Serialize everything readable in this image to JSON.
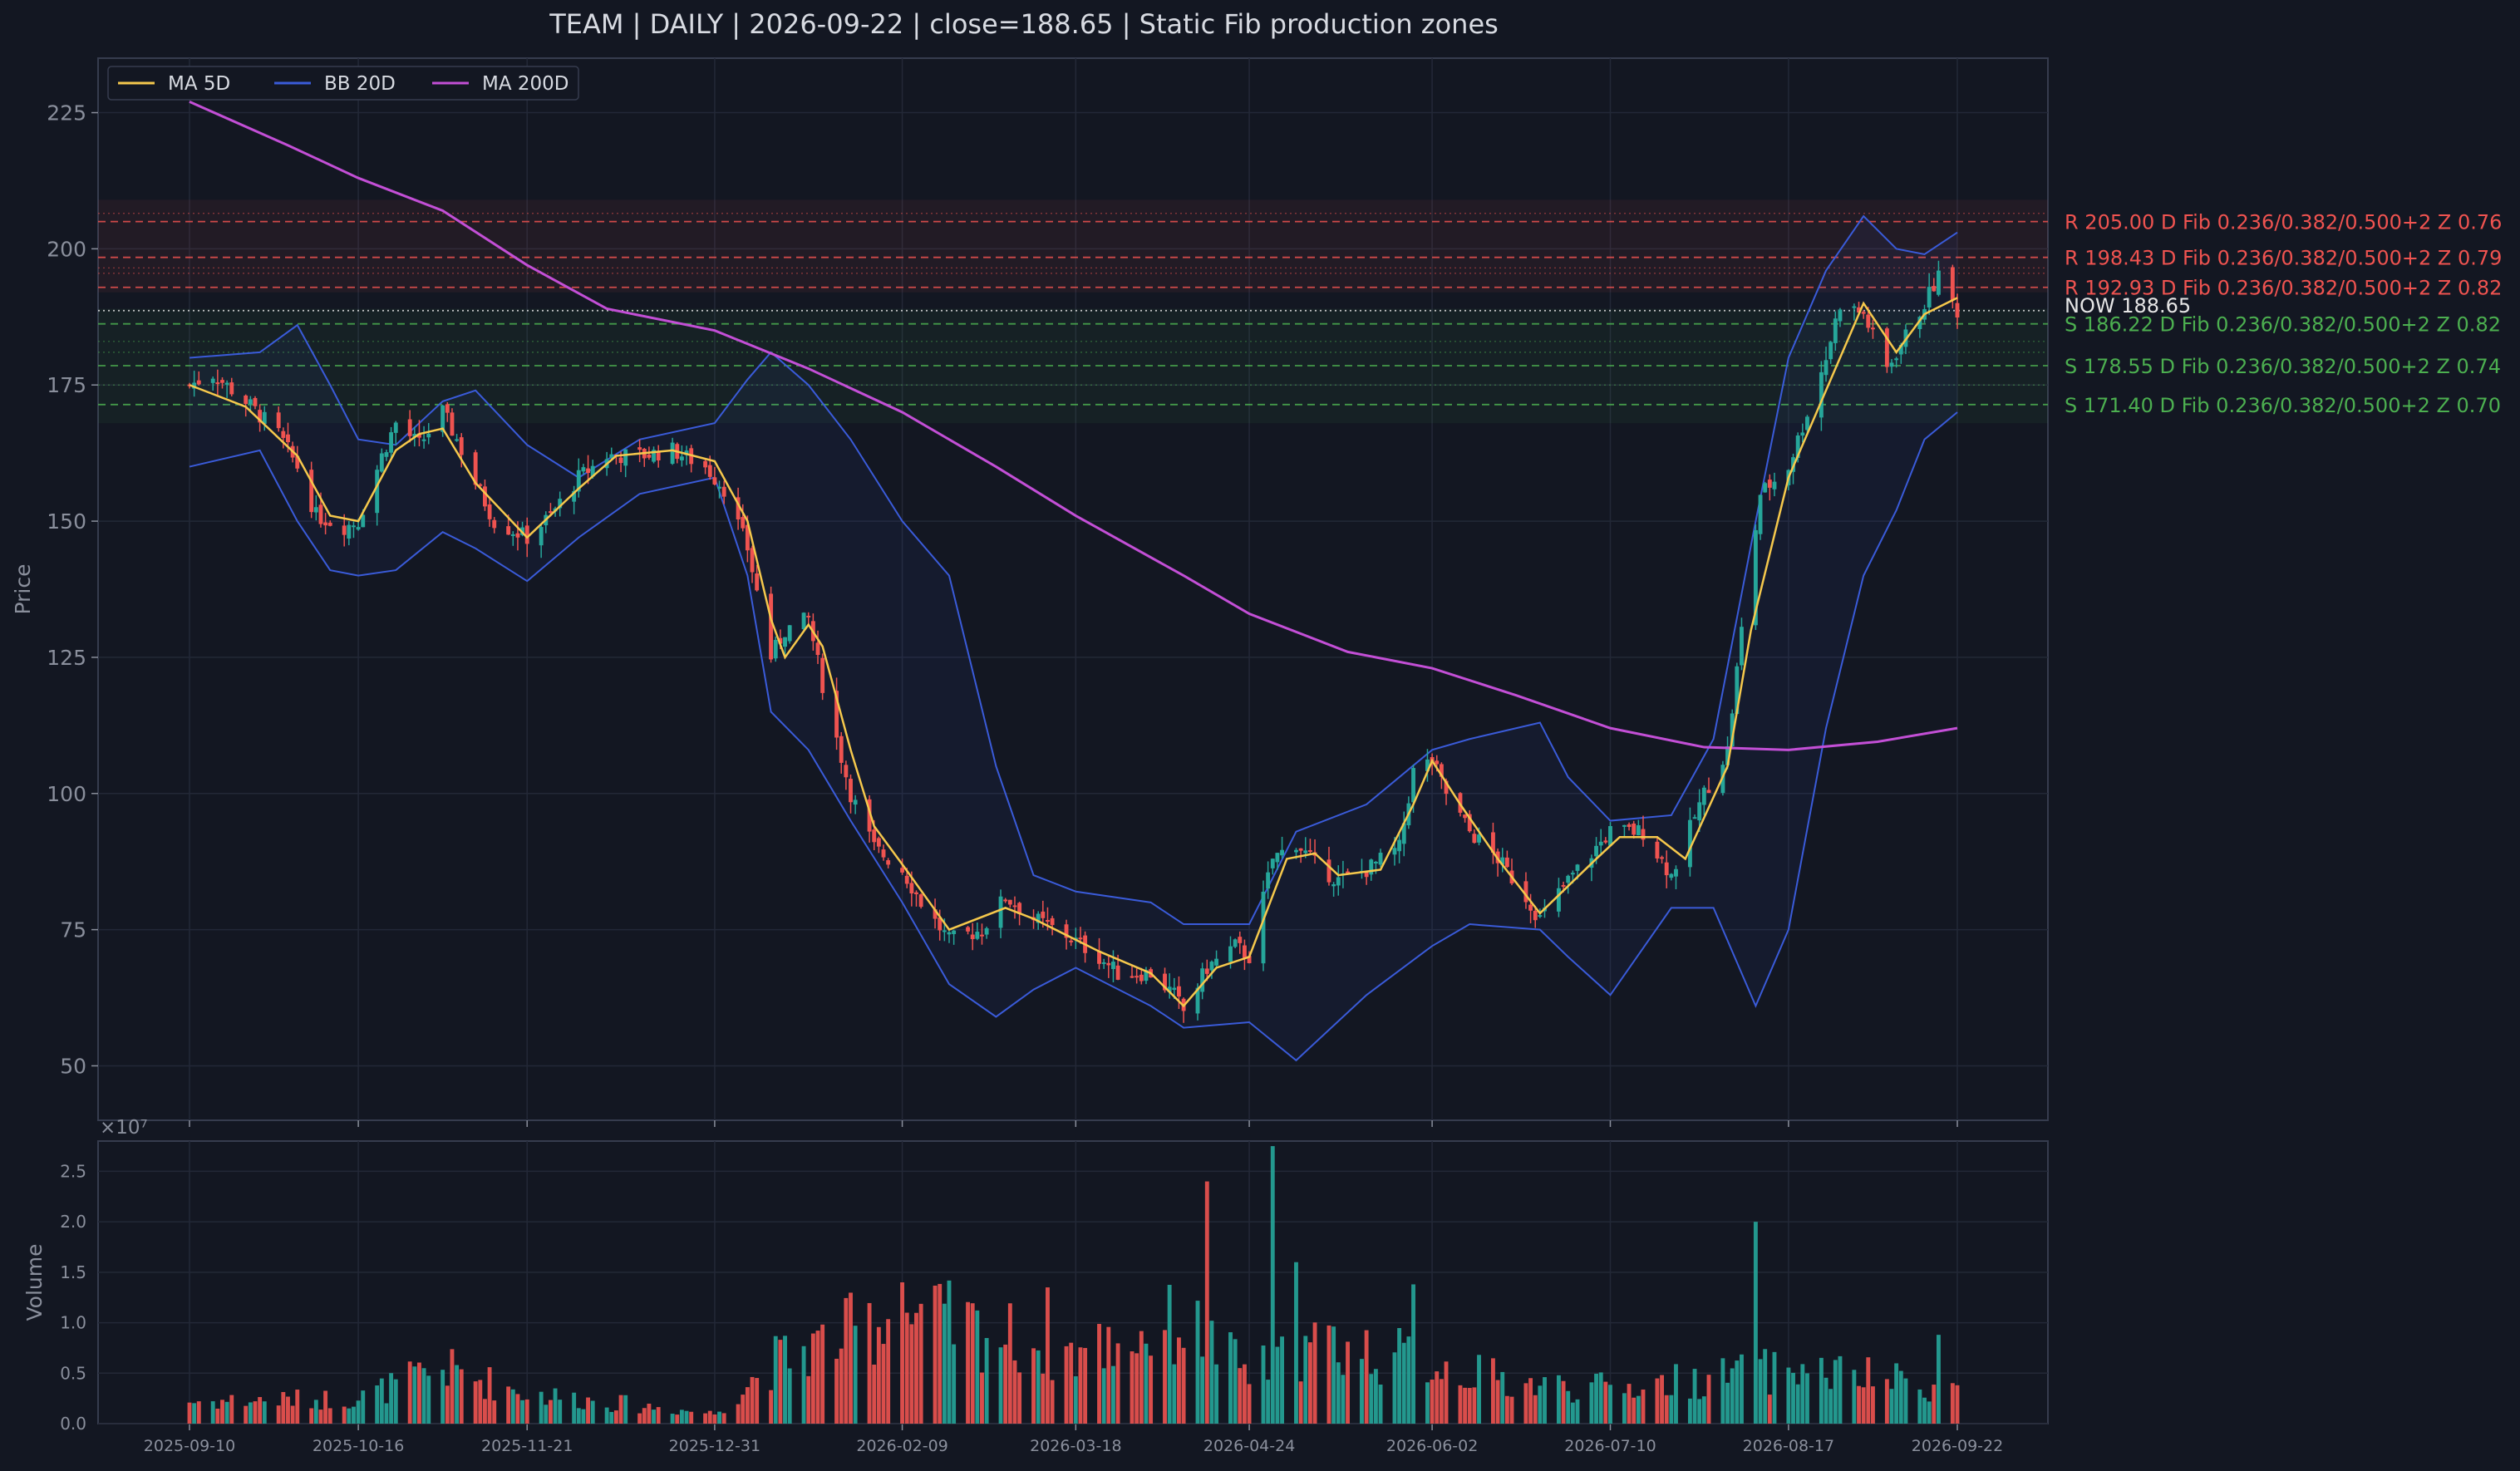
{
  "title": "TEAM  |  DAILY  |  2026-09-22  |  close=188.65  |  Static Fib production zones",
  "colors": {
    "background": "#131722",
    "panel": "#131722",
    "grid": "#232837",
    "border": "#363c4e",
    "text": "#d8dbe2",
    "muted": "#8a8f9c",
    "up": "#26a69a",
    "down": "#ef5350",
    "ma5": "#f5c84c",
    "bb": "#3a5bd9",
    "ma200": "#c34fd6",
    "resistance": "#ef5350",
    "support": "#4caf50",
    "now": "#e6e6e6"
  },
  "chart_data": {
    "type": "candlestick",
    "price_panel": {
      "ylabel": "Price",
      "ylim": [
        40,
        235
      ],
      "yticks": [
        50,
        75,
        100,
        125,
        150,
        175,
        200,
        225
      ],
      "grid": true,
      "legend": {
        "placement": "top-left",
        "entries": [
          {
            "label": "MA 5D",
            "color": "#f5c84c"
          },
          {
            "label": "BB 20D",
            "color": "#3a5bd9"
          },
          {
            "label": "MA 200D",
            "color": "#c34fd6"
          }
        ]
      }
    },
    "volume_panel": {
      "ylabel": "Volume",
      "scale_label": "×10⁷",
      "ylim": [
        0,
        2.8
      ],
      "yticks": [
        "0.0",
        "0.5",
        "1.0",
        "1.5",
        "2.0",
        "2.5"
      ]
    },
    "xticks": [
      "2025-09-10",
      "2025-10-16",
      "2025-11-21",
      "2025-12-31",
      "2026-02-09",
      "2026-03-18",
      "2026-04-24",
      "2026-06-02",
      "2026-07-10",
      "2026-08-17",
      "2026-09-22"
    ],
    "close_anchors": [
      [
        "2025-09-10",
        175
      ],
      [
        "2025-09-15",
        177
      ],
      [
        "2025-09-22",
        172
      ],
      [
        "2025-09-29",
        166
      ],
      [
        "2025-10-03",
        160
      ],
      [
        "2025-10-07",
        151
      ],
      [
        "2025-10-13",
        149
      ],
      [
        "2025-10-16",
        150
      ],
      [
        "2025-10-21",
        162
      ],
      [
        "2025-10-24",
        168
      ],
      [
        "2025-10-29",
        164
      ],
      [
        "2025-11-03",
        170
      ],
      [
        "2025-11-06",
        165
      ],
      [
        "2025-11-10",
        157
      ],
      [
        "2025-11-14",
        150
      ],
      [
        "2025-11-21",
        147
      ],
      [
        "2025-11-26",
        151
      ],
      [
        "2025-12-02",
        158
      ],
      [
        "2025-12-08",
        162
      ],
      [
        "2025-12-15",
        162
      ],
      [
        "2025-12-22",
        163
      ],
      [
        "2025-12-29",
        160
      ],
      [
        "2026-01-02",
        156
      ],
      [
        "2026-01-07",
        145
      ],
      [
        "2026-01-12",
        125
      ],
      [
        "2026-01-15",
        130
      ],
      [
        "2026-01-20",
        132
      ],
      [
        "2026-01-23",
        120
      ],
      [
        "2026-01-29",
        100
      ],
      [
        "2026-02-03",
        90
      ],
      [
        "2026-02-09",
        86
      ],
      [
        "2026-02-13",
        80
      ],
      [
        "2026-02-19",
        73
      ],
      [
        "2026-02-26",
        75
      ],
      [
        "2026-03-03",
        81
      ],
      [
        "2026-03-09",
        77
      ],
      [
        "2026-03-16",
        74
      ],
      [
        "2026-03-23",
        70
      ],
      [
        "2026-03-27",
        67
      ],
      [
        "2026-04-03",
        67
      ],
      [
        "2026-04-08",
        63
      ],
      [
        "2026-04-10",
        60
      ],
      [
        "2026-04-15",
        68
      ],
      [
        "2026-04-21",
        72
      ],
      [
        "2026-04-24",
        70
      ],
      [
        "2026-04-29",
        88
      ],
      [
        "2026-05-04",
        91
      ],
      [
        "2026-05-08",
        87
      ],
      [
        "2026-05-13",
        84
      ],
      [
        "2026-05-19",
        86
      ],
      [
        "2026-05-26",
        90
      ],
      [
        "2026-05-29",
        104
      ],
      [
        "2026-06-02",
        106
      ],
      [
        "2026-06-05",
        100
      ],
      [
        "2026-06-10",
        93
      ],
      [
        "2026-06-16",
        88
      ],
      [
        "2026-06-22",
        81
      ],
      [
        "2026-06-25",
        77
      ],
      [
        "2026-07-01",
        84
      ],
      [
        "2026-07-07",
        90
      ],
      [
        "2026-07-10",
        93
      ],
      [
        "2026-07-17",
        93
      ],
      [
        "2026-07-23",
        85
      ],
      [
        "2026-07-30",
        100
      ],
      [
        "2026-08-04",
        108
      ],
      [
        "2026-08-07",
        130
      ],
      [
        "2026-08-11",
        155
      ],
      [
        "2026-08-17",
        160
      ],
      [
        "2026-08-21",
        170
      ],
      [
        "2026-08-25",
        180
      ],
      [
        "2026-08-28",
        190
      ],
      [
        "2026-09-02",
        188
      ],
      [
        "2026-09-07",
        178
      ],
      [
        "2026-09-11",
        184
      ],
      [
        "2026-09-15",
        190
      ],
      [
        "2026-09-18",
        195
      ],
      [
        "2026-09-22",
        188.65
      ]
    ],
    "series": [
      {
        "name": "MA 5D",
        "anchors": [
          [
            "2025-09-10",
            175
          ],
          [
            "2025-09-22",
            171
          ],
          [
            "2025-10-03",
            162
          ],
          [
            "2025-10-10",
            151
          ],
          [
            "2025-10-16",
            150
          ],
          [
            "2025-10-24",
            163
          ],
          [
            "2025-10-29",
            166
          ],
          [
            "2025-11-03",
            167
          ],
          [
            "2025-11-10",
            157
          ],
          [
            "2025-11-21",
            147
          ],
          [
            "2025-12-02",
            156
          ],
          [
            "2025-12-10",
            162
          ],
          [
            "2025-12-22",
            163
          ],
          [
            "2025-12-31",
            161
          ],
          [
            "2026-01-07",
            150
          ],
          [
            "2026-01-12",
            132
          ],
          [
            "2026-01-15",
            125
          ],
          [
            "2026-01-20",
            131
          ],
          [
            "2026-01-23",
            127
          ],
          [
            "2026-01-29",
            108
          ],
          [
            "2026-02-03",
            94
          ],
          [
            "2026-02-09",
            87
          ],
          [
            "2026-02-19",
            75
          ],
          [
            "2026-03-03",
            79
          ],
          [
            "2026-03-09",
            77
          ],
          [
            "2026-03-23",
            71
          ],
          [
            "2026-04-03",
            67
          ],
          [
            "2026-04-10",
            61
          ],
          [
            "2026-04-17",
            68
          ],
          [
            "2026-04-24",
            70
          ],
          [
            "2026-05-02",
            88
          ],
          [
            "2026-05-08",
            89
          ],
          [
            "2026-05-13",
            85
          ],
          [
            "2026-05-22",
            86
          ],
          [
            "2026-05-29",
            98
          ],
          [
            "2026-06-02",
            106
          ],
          [
            "2026-06-08",
            98
          ],
          [
            "2026-06-16",
            88
          ],
          [
            "2026-06-25",
            78
          ],
          [
            "2026-07-07",
            88
          ],
          [
            "2026-07-12",
            92
          ],
          [
            "2026-07-20",
            92
          ],
          [
            "2026-07-26",
            88
          ],
          [
            "2026-08-04",
            105
          ],
          [
            "2026-08-09",
            130
          ],
          [
            "2026-08-17",
            158
          ],
          [
            "2026-08-25",
            174
          ],
          [
            "2026-09-02",
            190
          ],
          [
            "2026-09-09",
            181
          ],
          [
            "2026-09-15",
            188
          ],
          [
            "2026-09-22",
            191
          ]
        ]
      },
      {
        "name": "MA 200D",
        "anchors": [
          [
            "2025-09-10",
            227
          ],
          [
            "2025-10-01",
            219
          ],
          [
            "2025-10-16",
            213
          ],
          [
            "2025-11-03",
            207
          ],
          [
            "2025-11-21",
            197
          ],
          [
            "2025-12-08",
            189
          ],
          [
            "2025-12-31",
            185
          ],
          [
            "2026-01-20",
            178
          ],
          [
            "2026-02-09",
            170
          ],
          [
            "2026-03-01",
            160
          ],
          [
            "2026-03-18",
            151
          ],
          [
            "2026-04-10",
            140
          ],
          [
            "2026-04-24",
            133
          ],
          [
            "2026-05-15",
            126
          ],
          [
            "2026-06-02",
            123
          ],
          [
            "2026-06-20",
            118
          ],
          [
            "2026-07-10",
            112
          ],
          [
            "2026-07-30",
            108.5
          ],
          [
            "2026-08-17",
            108
          ],
          [
            "2026-09-05",
            109.5
          ],
          [
            "2026-09-22",
            112
          ]
        ]
      },
      {
        "name": "BB 20D",
        "upper": [
          [
            "2025-09-10",
            180
          ],
          [
            "2025-09-25",
            181
          ],
          [
            "2025-10-03",
            186
          ],
          [
            "2025-10-10",
            175
          ],
          [
            "2025-10-16",
            165
          ],
          [
            "2025-10-24",
            164
          ],
          [
            "2025-11-03",
            172
          ],
          [
            "2025-11-10",
            174
          ],
          [
            "2025-11-21",
            164
          ],
          [
            "2025-12-02",
            158
          ],
          [
            "2025-12-15",
            165
          ],
          [
            "2025-12-31",
            168
          ],
          [
            "2026-01-07",
            176
          ],
          [
            "2026-01-12",
            181
          ],
          [
            "2026-01-20",
            175
          ],
          [
            "2026-01-29",
            165
          ],
          [
            "2026-02-09",
            150
          ],
          [
            "2026-02-19",
            140
          ],
          [
            "2026-03-01",
            105
          ],
          [
            "2026-03-09",
            85
          ],
          [
            "2026-03-18",
            82
          ],
          [
            "2026-04-03",
            80
          ],
          [
            "2026-04-10",
            76
          ],
          [
            "2026-04-24",
            76
          ],
          [
            "2026-05-04",
            93
          ],
          [
            "2026-05-19",
            98
          ],
          [
            "2026-06-02",
            108
          ],
          [
            "2026-06-10",
            110
          ],
          [
            "2026-06-25",
            113
          ],
          [
            "2026-07-01",
            103
          ],
          [
            "2026-07-10",
            95
          ],
          [
            "2026-07-23",
            96
          ],
          [
            "2026-08-01",
            110
          ],
          [
            "2026-08-10",
            150
          ],
          [
            "2026-08-17",
            180
          ],
          [
            "2026-08-25",
            196
          ],
          [
            "2026-09-02",
            206
          ],
          [
            "2026-09-09",
            200
          ],
          [
            "2026-09-15",
            199
          ],
          [
            "2026-09-22",
            203
          ]
        ],
        "lower": [
          [
            "2025-09-10",
            160
          ],
          [
            "2025-09-25",
            163
          ],
          [
            "2025-10-03",
            150
          ],
          [
            "2025-10-10",
            141
          ],
          [
            "2025-10-16",
            140
          ],
          [
            "2025-10-24",
            141
          ],
          [
            "2025-11-03",
            148
          ],
          [
            "2025-11-10",
            145
          ],
          [
            "2025-11-21",
            139
          ],
          [
            "2025-12-02",
            147
          ],
          [
            "2025-12-15",
            155
          ],
          [
            "2025-12-31",
            158
          ],
          [
            "2026-01-07",
            140
          ],
          [
            "2026-01-12",
            115
          ],
          [
            "2026-01-20",
            108
          ],
          [
            "2026-01-29",
            95
          ],
          [
            "2026-02-09",
            80
          ],
          [
            "2026-02-19",
            65
          ],
          [
            "2026-03-01",
            59
          ],
          [
            "2026-03-09",
            64
          ],
          [
            "2026-03-18",
            68
          ],
          [
            "2026-04-03",
            61
          ],
          [
            "2026-04-10",
            57
          ],
          [
            "2026-04-24",
            58
          ],
          [
            "2026-05-04",
            51
          ],
          [
            "2026-05-19",
            63
          ],
          [
            "2026-06-02",
            72
          ],
          [
            "2026-06-10",
            76
          ],
          [
            "2026-06-25",
            75
          ],
          [
            "2026-07-01",
            70
          ],
          [
            "2026-07-10",
            63
          ],
          [
            "2026-07-23",
            79
          ],
          [
            "2026-08-01",
            79
          ],
          [
            "2026-08-10",
            61
          ],
          [
            "2026-08-17",
            75
          ],
          [
            "2026-08-25",
            112
          ],
          [
            "2026-09-02",
            140
          ],
          [
            "2026-09-09",
            152
          ],
          [
            "2026-09-15",
            165
          ],
          [
            "2026-09-22",
            170
          ]
        ]
      }
    ],
    "volume_anchors": [
      [
        "2025-09-10",
        0.22
      ],
      [
        "2025-10-16",
        0.25
      ],
      [
        "2025-11-03",
        0.55
      ],
      [
        "2025-11-21",
        0.3
      ],
      [
        "2025-12-31",
        0.1
      ],
      [
        "2026-01-12",
        0.6
      ],
      [
        "2026-02-09",
        1.1
      ],
      [
        "2026-03-18",
        0.7
      ],
      [
        "2026-04-10",
        1.0
      ],
      [
        "2026-04-24",
        0.5
      ],
      [
        "2026-05-10",
        0.8
      ],
      [
        "2026-06-02",
        0.6
      ],
      [
        "2026-06-20",
        0.4
      ],
      [
        "2026-07-10",
        0.35
      ],
      [
        "2026-08-10",
        0.5
      ],
      [
        "2026-08-17",
        0.55
      ],
      [
        "2026-09-22",
        0.35
      ]
    ],
    "volume_spikes": [
      [
        "2026-04-15",
        2.4
      ],
      [
        "2026-04-29",
        2.75
      ],
      [
        "2026-05-04",
        1.6
      ],
      [
        "2026-08-10",
        2.0
      ],
      [
        "2026-02-09",
        1.4
      ],
      [
        "2026-03-12",
        1.35
      ],
      [
        "2026-05-29",
        1.38
      ],
      [
        "2026-09-18",
        0.88
      ]
    ],
    "levels": [
      {
        "kind": "R",
        "price": 205.0,
        "label": "R 205.00  D  Fib 0.236/0.382/0.500+2  Z 0.76"
      },
      {
        "kind": "R",
        "price": 198.43,
        "label": "R 198.43  D  Fib 0.236/0.382/0.500+2  Z 0.79"
      },
      {
        "kind": "R",
        "price": 192.93,
        "label": "R 192.93  D  Fib 0.236/0.382/0.500+2  Z 0.82"
      },
      {
        "kind": "NOW",
        "price": 188.65,
        "label": "NOW 188.65"
      },
      {
        "kind": "S",
        "price": 186.22,
        "label": "S 186.22  D  Fib 0.236/0.382/0.500+2  Z 0.82"
      },
      {
        "kind": "S",
        "price": 178.55,
        "label": "S 178.55  D  Fib 0.236/0.382/0.500+2  Z 0.74"
      },
      {
        "kind": "S",
        "price": 171.4,
        "label": "S 171.40  D  Fib 0.236/0.382/0.500+2  Z 0.70"
      }
    ]
  }
}
